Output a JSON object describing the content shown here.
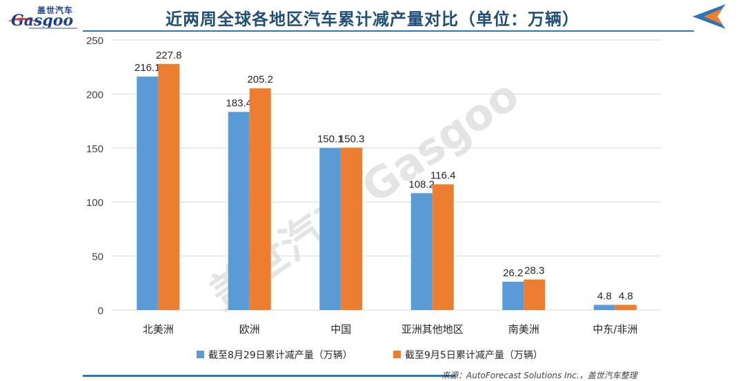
{
  "header": {
    "title": "近两周全球各地区汽车累计减产量对比（单位：万辆）",
    "logo_cn": "盖世汽车",
    "logo_en": "Gasgoo"
  },
  "footer": {
    "source": "来源：AutoForecast Solutions Inc.，盖世汽车整理"
  },
  "watermark": "盖世汽车 Gasgoo",
  "colors": {
    "series_1": "#5b9bd5",
    "series_2": "#ed7d31",
    "title": "#1f4e79",
    "accent": "#2e75b6"
  },
  "chart_data": {
    "type": "bar",
    "categories": [
      "北美洲",
      "欧洲",
      "中国",
      "亚洲其他地区",
      "南美洲",
      "中东/非洲"
    ],
    "series": [
      {
        "name": "截至8月29日累计减产量（万辆）",
        "values": [
          216.1,
          183.4,
          150.1,
          108.2,
          26.2,
          4.8
        ]
      },
      {
        "name": "截至9月5日累计减产量（万辆）",
        "values": [
          227.8,
          205.2,
          150.3,
          116.4,
          28.3,
          4.8
        ]
      }
    ],
    "ylim": [
      0,
      250
    ],
    "yticks": [
      0,
      50,
      100,
      150,
      200,
      250
    ],
    "grid": true,
    "legend_position": "bottom",
    "data_labels": true
  }
}
